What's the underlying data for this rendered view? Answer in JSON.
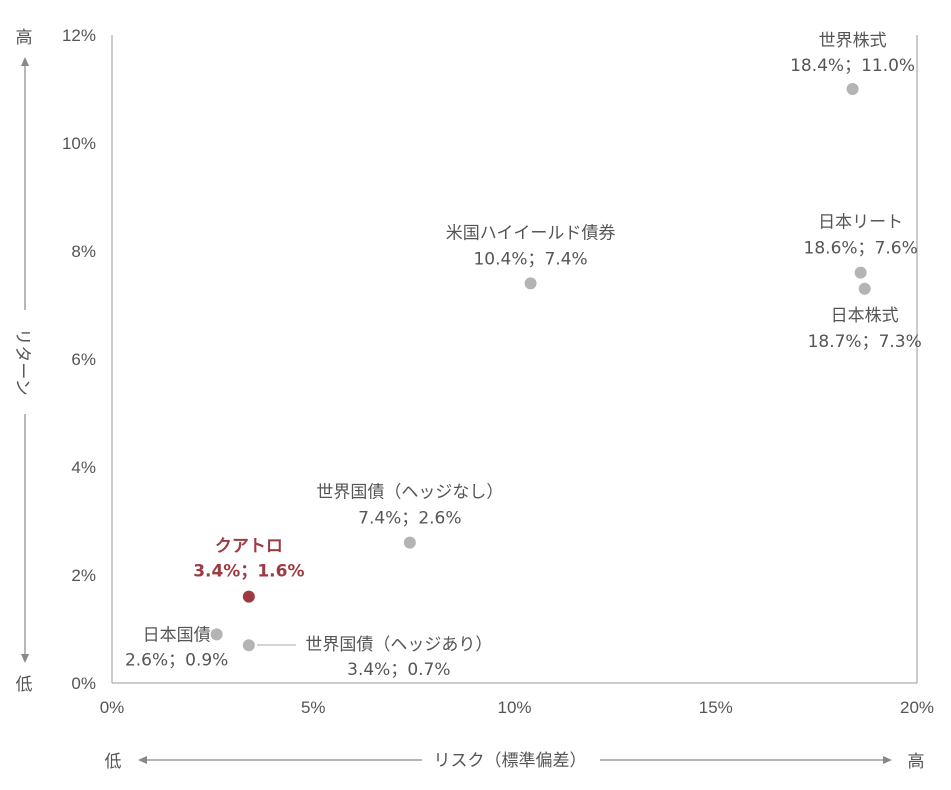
{
  "chart_data": {
    "type": "scatter",
    "xlabel": "リスク（標準偏差）",
    "ylabel": "リターン",
    "x_low_label": "低",
    "x_high_label": "高",
    "y_low_label": "低",
    "y_high_label": "高",
    "xlim": [
      0,
      20
    ],
    "ylim": [
      0,
      12
    ],
    "x_ticks": [
      "0%",
      "5%",
      "10%",
      "15%",
      "20%"
    ],
    "y_ticks": [
      "0%",
      "2%",
      "4%",
      "6%",
      "8%",
      "10%",
      "12%"
    ],
    "grid": false,
    "point_color": "#b4b4b4",
    "highlight_color": "#9e3a42",
    "points": [
      {
        "name": "世界株式",
        "value_label": "18.4%；11.0%",
        "x": 18.4,
        "y": 11.0
      },
      {
        "name": "日本リート",
        "value_label": "18.6%；7.6%",
        "x": 18.6,
        "y": 7.6
      },
      {
        "name": "日本株式",
        "value_label": "18.7%；7.3%",
        "x": 18.7,
        "y": 7.3
      },
      {
        "name": "米国ハイイールド債券",
        "value_label": "10.4%；7.4%",
        "x": 10.4,
        "y": 7.4
      },
      {
        "name": "世界国債（ヘッジなし）",
        "value_label": "7.4%；2.6%",
        "x": 7.4,
        "y": 2.6
      },
      {
        "name": "クアトロ",
        "value_label": "3.4%；1.6%",
        "x": 3.4,
        "y": 1.6,
        "highlight": true
      },
      {
        "name": "日本国債",
        "value_label": "2.6%；0.9%",
        "x": 2.6,
        "y": 0.9
      },
      {
        "name": "世界国債（ヘッジあり）",
        "value_label": "3.4%；0.7%",
        "x": 3.4,
        "y": 0.7
      }
    ]
  }
}
